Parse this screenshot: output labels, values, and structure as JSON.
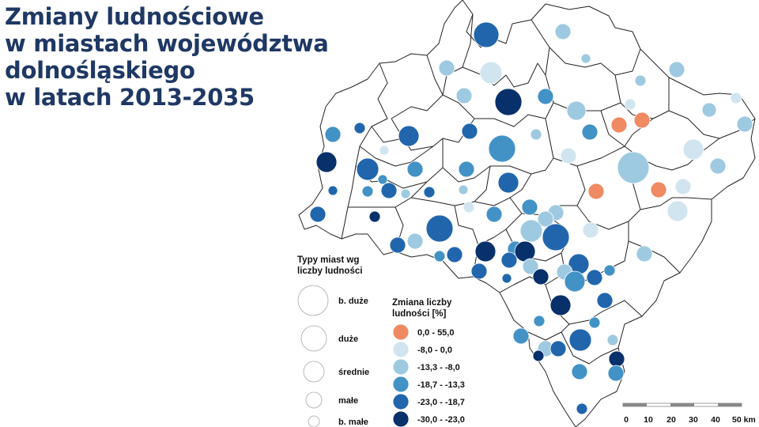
{
  "title": {
    "line1": "Zmiany ludnościowe",
    "line2": "w miastach województwa",
    "line3": "dolnośląskiego",
    "line4": "w latach 2013-2035"
  },
  "legend_size": {
    "heading_line1": "Typy miast wg",
    "heading_line2": "liczby ludności",
    "items": [
      "b. duże",
      "duże",
      "średnie",
      "małe",
      "b. małe"
    ]
  },
  "legend_color": {
    "heading_line1": "Zmiana liczby",
    "heading_line2": "ludności [%]",
    "classes": [
      {
        "label": "0,0 - 55,0",
        "color": "#ef8a62"
      },
      {
        "label": "-8,0 - 0,0",
        "color": "#d1e5f0"
      },
      {
        "label": "-13,3 - -8,0",
        "color": "#9ecae1"
      },
      {
        "label": "-18,7 - -13,3",
        "color": "#4292c6"
      },
      {
        "label": "-23,0 - -18,7",
        "color": "#2166ac"
      },
      {
        "label": "-30,0 - -23,0",
        "color": "#08306b"
      }
    ]
  },
  "scale_bar": {
    "labels": [
      "0",
      "10",
      "20",
      "30",
      "40",
      "50 km"
    ]
  }
}
